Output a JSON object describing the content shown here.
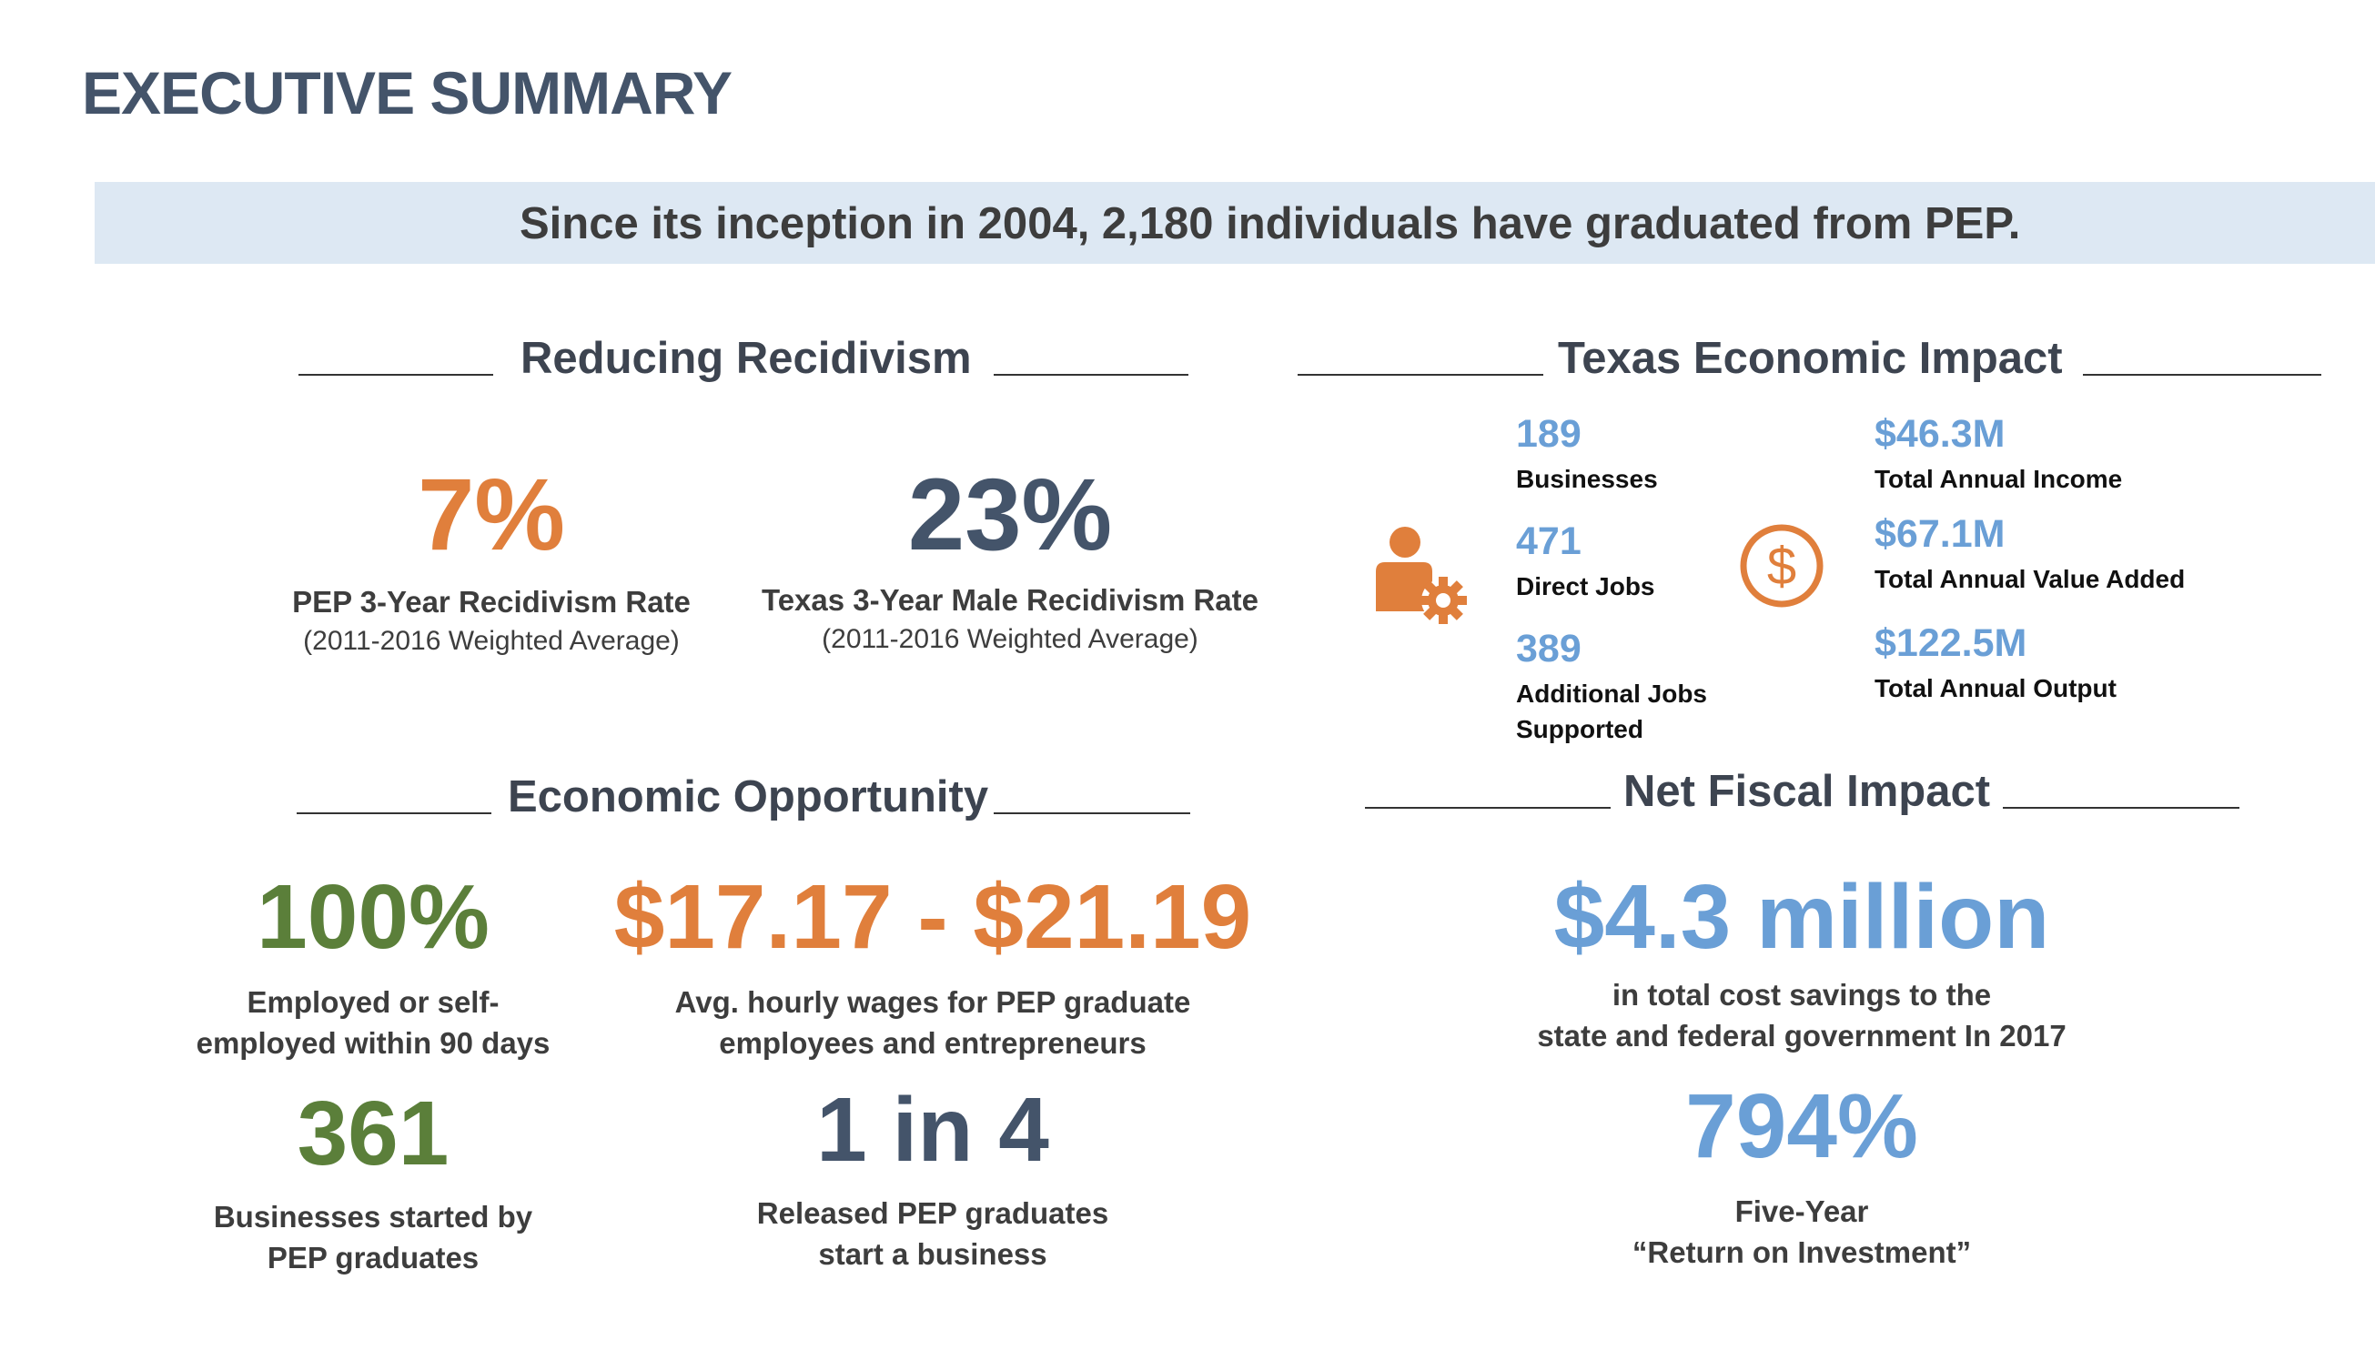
{
  "page": {
    "title": "EXECUTIVE SUMMARY"
  },
  "banner": {
    "text": "Since its inception in 2004, 2,180 individuals have graduated from PEP."
  },
  "recidivism": {
    "heading": "Reducing Recidivism",
    "pep": {
      "value": "7%",
      "label": "PEP 3-Year Recidivism Rate",
      "sub": "(2011-2016 Weighted Average)"
    },
    "texas": {
      "value": "23%",
      "label": "Texas 3-Year Male Recidivism Rate",
      "sub": "(2011-2016 Weighted Average)"
    }
  },
  "economic_impact": {
    "heading": "Texas Economic Impact",
    "left": [
      {
        "value": "189",
        "label": "Businesses"
      },
      {
        "value": "471",
        "label": "Direct Jobs"
      },
      {
        "value": "389",
        "label": "Additional Jobs",
        "label2": "Supported"
      }
    ],
    "right": [
      {
        "value": "$46.3M",
        "label": "Total Annual Income"
      },
      {
        "value": "$67.1M",
        "label": "Total Annual Value Added"
      },
      {
        "value": "$122.5M",
        "label": "Total Annual Output"
      }
    ],
    "icons": {
      "person": "person-gear-icon",
      "money": "dollar-circle-icon"
    },
    "colors": {
      "icon_orange": "#e07f3c"
    }
  },
  "opportunity": {
    "heading": "Economic Opportunity",
    "employed": {
      "value": "100%",
      "line1": "Employed or self-",
      "line2": "employed within 90 days"
    },
    "wages": {
      "value": "$17.17 - $21.19",
      "line1": "Avg. hourly wages for PEP graduate",
      "line2": "employees and entrepreneurs"
    },
    "businesses": {
      "value": "361",
      "line1": "Businesses started by",
      "line2": "PEP graduates"
    },
    "ratio": {
      "value": "1 in 4",
      "line1": "Released PEP graduates",
      "line2": "start a business"
    }
  },
  "fiscal": {
    "heading": "Net Fiscal Impact",
    "savings": {
      "value": "$4.3 million",
      "line1": "in total cost savings to the",
      "line2": "state and federal government In 2017"
    },
    "roi": {
      "value": "794%",
      "line1": "Five-Year",
      "line2": "“Return on Investment”"
    }
  },
  "colors": {
    "title": "#44546a",
    "banner_bg": "#dde8f3",
    "orange": "#e07f3c",
    "slate": "#44546a",
    "green": "#5b7f3a",
    "blue": "#6a9fd6"
  }
}
